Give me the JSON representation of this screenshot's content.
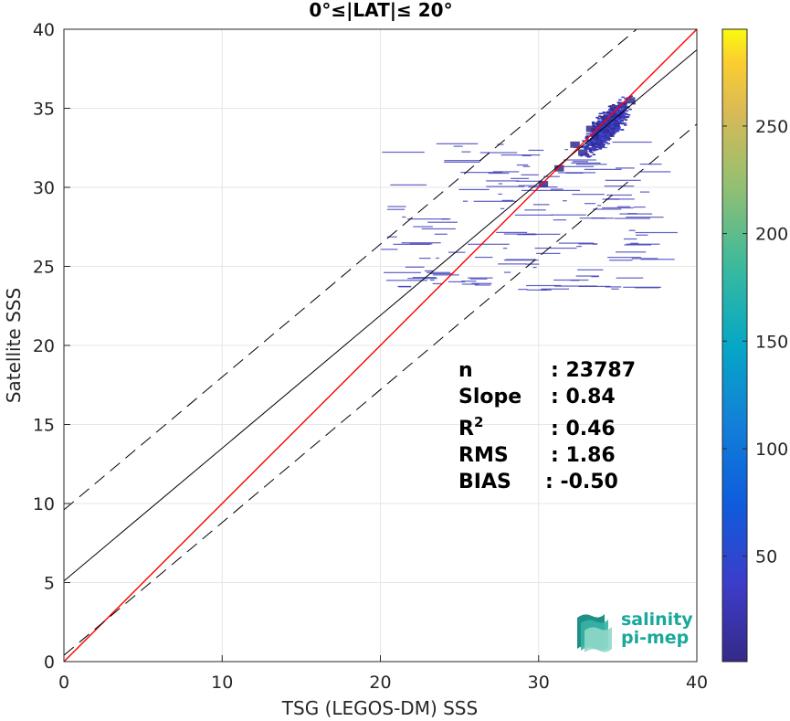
{
  "chart_data": {
    "type": "scatter",
    "title": "0°≤|LAT|≤ 20°",
    "xlabel": "TSG (LEGOS-DM) SSS",
    "ylabel": "Satellite SSS",
    "xlim": [
      0,
      40
    ],
    "ylim": [
      0,
      40
    ],
    "xticks": [
      "0",
      "10",
      "20",
      "30",
      "40"
    ],
    "yticks": [
      "0",
      "5",
      "10",
      "15",
      "20",
      "25",
      "30",
      "35",
      "40"
    ],
    "grid": true,
    "density_cells": [
      [
        30.0,
        30.0,
        1
      ],
      [
        31.0,
        31.0,
        1
      ],
      [
        32.0,
        32.5,
        1
      ],
      [
        33.0,
        33.5,
        1
      ],
      [
        34.0,
        34.0,
        1
      ],
      [
        35.0,
        35.0,
        1
      ],
      [
        35.5,
        35.3,
        1
      ],
      [
        34.5,
        34.8,
        1
      ],
      [
        33.5,
        33.0,
        1
      ],
      [
        32.5,
        32.0,
        1
      ]
    ],
    "density_scale": "count per bin",
    "reference_lines": [
      {
        "name": "1:1",
        "slope": 1.0,
        "intercept": 0.0,
        "color": "#ff0000",
        "style": "solid"
      },
      {
        "name": "fit",
        "slope": 0.84,
        "intercept": 5.1,
        "color": "#000000",
        "style": "solid"
      },
      {
        "name": "upper",
        "slope": 0.84,
        "intercept": 9.6,
        "color": "#000000",
        "style": "dashed"
      },
      {
        "name": "lower",
        "slope": 0.84,
        "intercept": 0.4,
        "color": "#000000",
        "style": "dashed"
      }
    ],
    "colorbar": {
      "min": 1,
      "max": 295,
      "ticks": [
        "50",
        "100",
        "150",
        "200",
        "250"
      ],
      "colormap": "parula"
    }
  },
  "stats": [
    {
      "label": "n",
      "value": ": 23787"
    },
    {
      "label": "Slope",
      "value": ": 0.84"
    },
    {
      "label": "R",
      "sup": "2",
      "value": ": 0.46"
    },
    {
      "label": "RMS",
      "value": ": 1.86"
    },
    {
      "label": "BIAS",
      "value": ": -0.50"
    }
  ],
  "logo": {
    "line1": "salinity",
    "line2": "pi-mep"
  },
  "colors": {
    "one_to_one": "#ff0000",
    "fit": "#000000",
    "grid": "#e6e6e6",
    "axis": "#262626"
  }
}
